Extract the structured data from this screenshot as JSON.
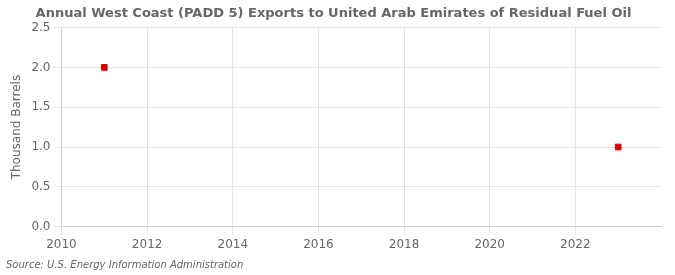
{
  "chart_data": {
    "type": "scatter",
    "title": "Annual West Coast (PADD 5) Exports to United Arab Emirates of Residual Fuel Oil",
    "ylabel": "Thousand Barrels",
    "source": "Source: U.S. Energy Information Administration",
    "x": [
      2011,
      2023
    ],
    "values": [
      2.0,
      1.0
    ],
    "color": "#cc0000",
    "marker": "square",
    "xlim": [
      2010,
      2024
    ],
    "ylim": [
      0.0,
      2.5
    ],
    "xticks": [
      2010,
      2012,
      2014,
      2016,
      2018,
      2020,
      2022
    ],
    "yticks": [
      {
        "value": 0.0,
        "label": "0.0"
      },
      0.5,
      {
        "value": 1.0,
        "label": "1.0"
      },
      1.5,
      {
        "value": 2.0,
        "label": "2.0"
      },
      2.5
    ],
    "grid": true
  }
}
